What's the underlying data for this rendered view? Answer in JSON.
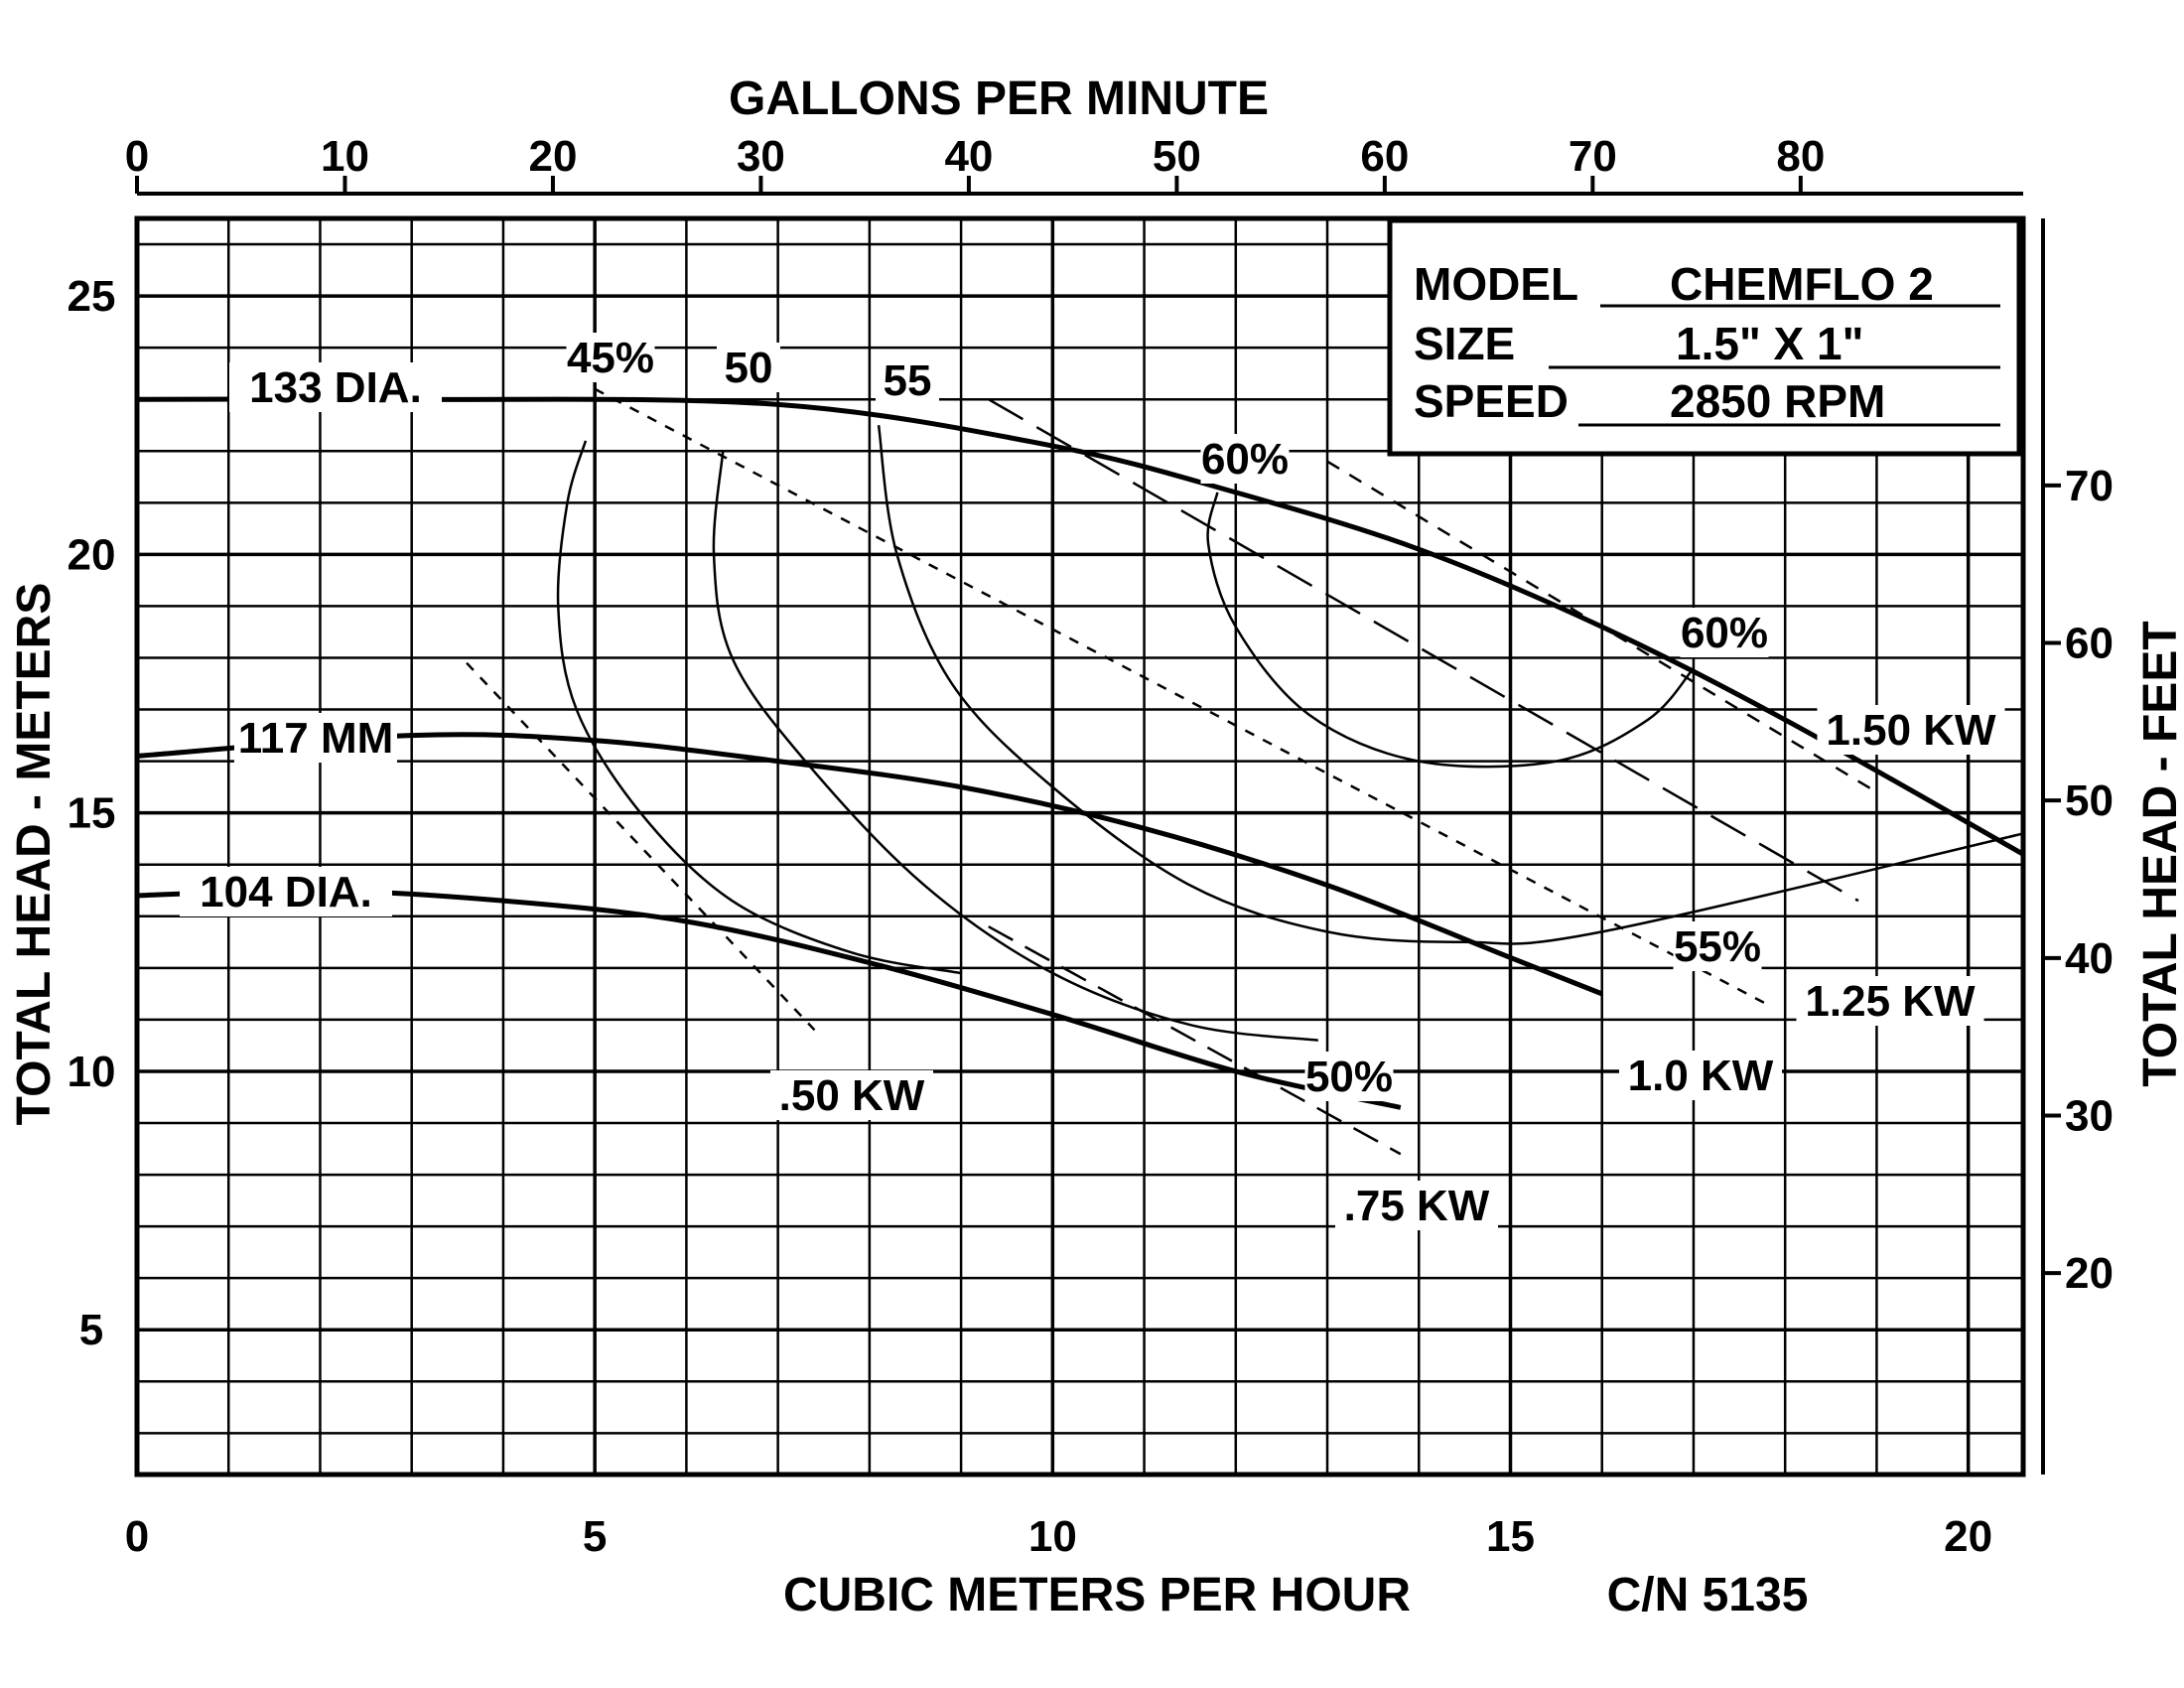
{
  "chart_data": {
    "type": "line",
    "title": "",
    "xlabel": "CUBIC METERS PER HOUR",
    "x2label": "GALLONS PER MINUTE",
    "ylabel": "TOTAL HEAD - METERS",
    "y2label": "TOTAL HEAD - FEET",
    "catalog_number": "C/N 5135",
    "xlim": [
      0,
      20.6
    ],
    "ylim": [
      2.2,
      26.5
    ],
    "grid": true,
    "x_ticks": [
      "0",
      "5",
      "10",
      "15",
      "20"
    ],
    "y_ticks": [
      "5",
      "10",
      "15",
      "20",
      "25"
    ],
    "x2_ticks": [
      "0",
      "10",
      "20",
      "30",
      "40",
      "50",
      "60",
      "70",
      "80"
    ],
    "y2_ticks": [
      "20",
      "30",
      "40",
      "50",
      "60",
      "70"
    ],
    "info_box": {
      "model_label": "MODEL",
      "model_value": "CHEMFLO 2",
      "size_label": "SIZE",
      "size_value": "1.5\" X 1\"",
      "speed_label": "SPEED",
      "speed_value": "2850 RPM"
    },
    "series": [
      {
        "name": "133 DIA.",
        "kind": "impeller",
        "x": [
          0,
          3,
          7,
          10,
          12,
          14,
          16,
          18,
          20.6
        ],
        "y": [
          23.0,
          23.0,
          22.9,
          22.1,
          21.2,
          20.1,
          18.6,
          16.8,
          14.2
        ]
      },
      {
        "name": "117 MM",
        "kind": "impeller",
        "x": [
          0,
          3,
          5,
          7,
          9,
          11,
          13,
          15,
          16
        ],
        "y": [
          16.1,
          16.5,
          16.4,
          16.0,
          15.5,
          14.7,
          13.6,
          12.2,
          11.5
        ]
      },
      {
        "name": "104 DIA.",
        "kind": "impeller",
        "x": [
          0,
          2,
          4,
          6,
          8,
          10,
          12,
          13.8
        ],
        "y": [
          13.4,
          13.5,
          13.3,
          12.9,
          12.1,
          11.1,
          10.0,
          9.3
        ]
      },
      {
        "name": "45%",
        "kind": "efficiency",
        "x": [
          4.9,
          4.7,
          4.6,
          4.8,
          5.5,
          6.5,
          7.8,
          9.0
        ],
        "y": [
          22.2,
          21.0,
          19.0,
          17.0,
          15.0,
          13.3,
          12.3,
          11.9
        ]
      },
      {
        "name": "50",
        "kind": "efficiency",
        "x": [
          6.4,
          6.3,
          6.5,
          7.3,
          8.6,
          10.0,
          11.5,
          12.9
        ],
        "y": [
          22.0,
          20.0,
          18.0,
          16.0,
          13.6,
          11.9,
          10.9,
          10.6
        ]
      },
      {
        "name": "55",
        "kind": "efficiency",
        "x": [
          8.1,
          8.3,
          8.9,
          10.0,
          11.5,
          13.0,
          14.5,
          16.0,
          20.6
        ],
        "y": [
          22.5,
          20.0,
          17.5,
          15.5,
          13.6,
          12.7,
          12.5,
          12.7,
          14.6
        ]
      },
      {
        "name": "60%",
        "kind": "efficiency",
        "x": [
          11.8,
          11.7,
          12.0,
          12.8,
          14.0,
          15.5,
          16.5,
          17.0
        ],
        "y": [
          21.2,
          20.2,
          18.6,
          16.9,
          16.0,
          16.0,
          16.8,
          17.8
        ]
      }
    ],
    "efficiency_labels": [
      "45%",
      "50",
      "55",
      "60%",
      "60%",
      "55%",
      "50%"
    ],
    "power_lines": [
      {
        "name": ".50 KW",
        "x": [
          3.6,
          7.4
        ],
        "y": [
          17.9,
          10.8
        ]
      },
      {
        "name": ".75 KW",
        "x": [
          9.3,
          13.8
        ],
        "y": [
          12.8,
          8.4
        ]
      },
      {
        "name": "1.0 KW",
        "x": [
          5.0,
          17.8
        ],
        "y": [
          23.2,
          11.3
        ]
      },
      {
        "name": "1.25 KW",
        "x": [
          9.3,
          18.8
        ],
        "y": [
          23.0,
          13.3
        ]
      },
      {
        "name": "1.50 KW",
        "x": [
          13.0,
          19.0
        ],
        "y": [
          21.8,
          15.4
        ]
      }
    ]
  }
}
